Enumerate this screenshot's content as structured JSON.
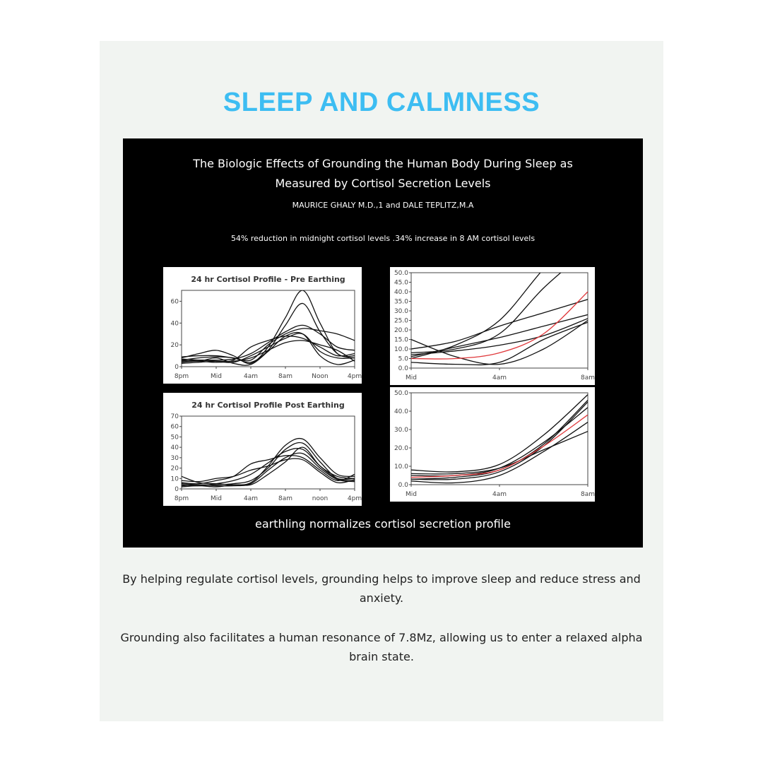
{
  "heading": "SLEEP AND CALMNESS",
  "poster": {
    "title_line1": "The Biologic Effects of Grounding the Human Body During Sleep as",
    "title_line2": "Measured by Cortisol Secretion Levels",
    "authors": "MAURICE GHALY M.D.,1 and DALE TEPLITZ,M.A",
    "summary": "54% reduction in midnight cortisol levels .34% increase in 8 AM cortisol levels",
    "caption": "earthling normalizes cortisol secretion profile"
  },
  "charts": [
    {
      "id": "pre",
      "title": "24 hr Cortisol Profile - Pre Earthing",
      "x": [
        20,
        22,
        24,
        26,
        28,
        30,
        32,
        34,
        36,
        38,
        40
      ],
      "x_ticks": [
        20,
        24,
        28,
        32,
        36,
        40
      ],
      "x_tick_labels": [
        "8pm",
        "Mid",
        "4am",
        "8am",
        "Noon",
        "4pm"
      ],
      "y_ticks": [
        0,
        20,
        40,
        60
      ],
      "y_tick_labels": [
        "0",
        "20",
        "40",
        "60"
      ],
      "ylim": [
        0,
        70
      ],
      "series": [
        {
          "color": "#111",
          "values": [
            8,
            12,
            15,
            10,
            3,
            18,
            45,
            70,
            40,
            12,
            10
          ]
        },
        {
          "color": "#111",
          "values": [
            6,
            8,
            9,
            8,
            4,
            15,
            38,
            58,
            32,
            12,
            8
          ]
        },
        {
          "color": "#111",
          "values": [
            5,
            6,
            6,
            7,
            12,
            22,
            32,
            38,
            30,
            18,
            15
          ]
        },
        {
          "color": "#111",
          "values": [
            9,
            10,
            10,
            8,
            6,
            20,
            30,
            35,
            33,
            30,
            24
          ]
        },
        {
          "color": "#111",
          "values": [
            4,
            5,
            4,
            6,
            18,
            24,
            28,
            26,
            18,
            10,
            12
          ]
        },
        {
          "color": "#111",
          "values": [
            7,
            6,
            5,
            4,
            10,
            18,
            26,
            30,
            14,
            8,
            8
          ]
        },
        {
          "color": "#111",
          "values": [
            3,
            4,
            5,
            5,
            8,
            15,
            22,
            24,
            20,
            15,
            5
          ]
        },
        {
          "color": "#111",
          "values": [
            6,
            5,
            8,
            3,
            2,
            14,
            28,
            30,
            10,
            2,
            6
          ]
        }
      ]
    },
    {
      "id": "post",
      "title": "24 hr Cortisol Profile Post Earthing",
      "x": [
        20,
        22,
        24,
        26,
        28,
        30,
        32,
        34,
        36,
        38,
        40
      ],
      "x_ticks": [
        20,
        24,
        28,
        32,
        36,
        40
      ],
      "x_tick_labels": [
        "8pm",
        "Mid",
        "4am",
        "8am",
        "noon",
        "4pm"
      ],
      "y_ticks": [
        0,
        10,
        20,
        30,
        40,
        50,
        60,
        70
      ],
      "y_tick_labels": [
        "0",
        "10",
        "20",
        "30",
        "40",
        "50",
        "60",
        "70"
      ],
      "ylim": [
        0,
        70
      ],
      "series": [
        {
          "color": "#111",
          "values": [
            12,
            6,
            5,
            4,
            6,
            22,
            42,
            48,
            30,
            14,
            12
          ]
        },
        {
          "color": "#111",
          "values": [
            5,
            4,
            4,
            5,
            8,
            20,
            38,
            44,
            26,
            10,
            8
          ]
        },
        {
          "color": "#111",
          "values": [
            4,
            3,
            5,
            8,
            14,
            25,
            36,
            38,
            22,
            10,
            10
          ]
        },
        {
          "color": "#111",
          "values": [
            6,
            5,
            8,
            12,
            24,
            28,
            32,
            30,
            18,
            8,
            14
          ]
        },
        {
          "color": "#111",
          "values": [
            3,
            4,
            3,
            3,
            5,
            18,
            30,
            34,
            20,
            9,
            7
          ]
        },
        {
          "color": "#111",
          "values": [
            8,
            7,
            10,
            12,
            18,
            22,
            28,
            28,
            16,
            6,
            9
          ]
        },
        {
          "color": "#111",
          "values": [
            2,
            3,
            2,
            4,
            4,
            14,
            26,
            40,
            22,
            12,
            10
          ]
        }
      ]
    },
    {
      "id": "pre-night",
      "title": "",
      "x": [
        0,
        2,
        4,
        6,
        8
      ],
      "x_ticks": [
        0,
        4,
        8
      ],
      "x_tick_labels": [
        "Mid",
        "4am",
        "8am"
      ],
      "y_ticks": [
        0,
        5,
        10,
        15,
        20,
        25,
        30,
        35,
        40,
        45,
        50
      ],
      "y_tick_labels": [
        "0.0",
        "5.0",
        "10.0",
        "15.0",
        "20.0",
        "25.0",
        "30.0",
        "35.0",
        "40.0",
        "45.0",
        "50.0"
      ],
      "ylim": [
        0,
        50
      ],
      "series": [
        {
          "color": "#111",
          "values": [
            15,
            6,
            2,
            10,
            25
          ]
        },
        {
          "color": "#111",
          "values": [
            5,
            12,
            25,
            52,
            75
          ]
        },
        {
          "color": "#111",
          "values": [
            8,
            10,
            18,
            42,
            62
          ]
        },
        {
          "color": "#111",
          "values": [
            6,
            11,
            16,
            22,
            28
          ]
        },
        {
          "color": "#111",
          "values": [
            10,
            14,
            22,
            29,
            36
          ]
        },
        {
          "color": "#111",
          "values": [
            3,
            2,
            3,
            15,
            24
          ]
        },
        {
          "color": "#111",
          "values": [
            7,
            9,
            12,
            17,
            26
          ]
        },
        {
          "color": "#e0383b",
          "values": [
            5,
            5,
            8,
            18,
            40
          ]
        }
      ]
    },
    {
      "id": "post-night",
      "title": "",
      "x": [
        0,
        2,
        4,
        6,
        8
      ],
      "x_ticks": [
        0,
        4,
        8
      ],
      "x_tick_labels": [
        "Mid",
        "4am",
        "8am"
      ],
      "y_ticks": [
        0,
        10,
        20,
        30,
        40,
        50
      ],
      "y_tick_labels": [
        "0.0",
        "10.0",
        "20.0",
        "30.0",
        "40.0",
        "50.0"
      ],
      "ylim": [
        0,
        50
      ],
      "series": [
        {
          "color": "#111",
          "values": [
            8,
            7,
            11,
            27,
            49
          ]
        },
        {
          "color": "#111",
          "values": [
            3,
            3,
            7,
            21,
            45
          ]
        },
        {
          "color": "#111",
          "values": [
            5,
            5,
            9,
            23,
            42
          ]
        },
        {
          "color": "#111",
          "values": [
            2,
            1,
            5,
            18,
            34
          ]
        },
        {
          "color": "#111",
          "values": [
            6,
            6,
            9,
            19,
            29
          ]
        },
        {
          "color": "#111",
          "values": [
            3,
            4,
            8,
            22,
            46
          ]
        },
        {
          "color": "#e0383b",
          "values": [
            4,
            5,
            8,
            21,
            38
          ]
        }
      ]
    }
  ],
  "body": {
    "paragraph1": "By helping regulate cortisol levels, grounding helps to improve sleep and reduce stress and anxiety.",
    "paragraph2": "Grounding also facilitates a human resonance of 7.8Mz, allowing us to enter a relaxed alpha brain state."
  }
}
